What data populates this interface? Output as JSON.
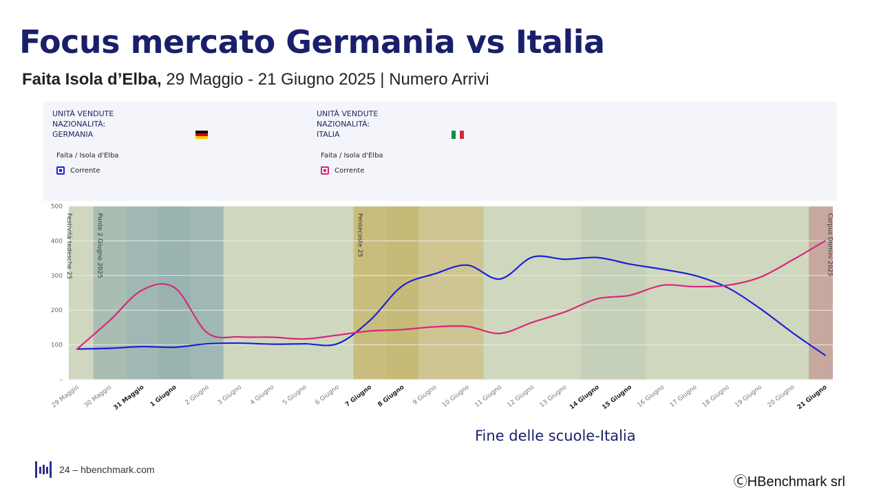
{
  "slide": {
    "title": "Focus mercato Germania vs Italia",
    "subtitle_bold": "Faita Isola d’Elba,",
    "subtitle_rest": " 29 Maggio - 21 Giugno 2025 | Numero Arrivi",
    "footnote": "Fine delle scuole-Italia",
    "footer": "24 – hbenchmark.com",
    "copyright": "ⒸHBenchmark srl"
  },
  "panel": {
    "germany": {
      "line1": "UNITÀ VENDUTE",
      "line2": "NAZIONALITÀ:",
      "line3": "GERMANIA",
      "group": "Faita / Isola d'Elba",
      "legend": "Corrente",
      "color": "#1a1fd6",
      "flag": "germany-flag"
    },
    "italy": {
      "line1": "UNITÀ VENDUTE",
      "line2": "NAZIONALITÀ:",
      "line3": "ITALIA",
      "group": "Faita / Isola d'Elba",
      "legend": "Corrente",
      "color": "#d9267a",
      "flag": "italy-flag"
    }
  },
  "chart_data": {
    "type": "line",
    "x": [
      "29 Maggio",
      "30 Maggio",
      "31 Maggio",
      "1 Giugno",
      "2 Giugno",
      "3 Giugno",
      "4 Giugno",
      "5 Giugno",
      "6 Giugno",
      "7 Giugno",
      "8 Giugno",
      "9 Giugno",
      "10 Giugno",
      "11 Giugno",
      "12 Giugno",
      "13 Giugno",
      "14 Giugno",
      "15 Giugno",
      "16 Giugno",
      "17 Giugno",
      "18 Giugno",
      "19 Giugno",
      "20 Giugno",
      "21 Giugno"
    ],
    "bold_ticks": [
      "31 Maggio",
      "1 Giugno",
      "7 Giugno",
      "8 Giugno",
      "14 Giugno",
      "15 Giugno",
      "21 Giugno"
    ],
    "ylim": [
      0,
      500
    ],
    "yticks": [
      "500",
      "400",
      "300",
      "200",
      "100",
      "–"
    ],
    "grid": true,
    "series": [
      {
        "name": "Germania",
        "color": "#1a1fd6",
        "values": [
          88,
          90,
          95,
          93,
          103,
          105,
          102,
          103,
          103,
          170,
          270,
          305,
          330,
          290,
          353,
          347,
          352,
          333,
          318,
          300,
          265,
          205,
          135,
          70
        ]
      },
      {
        "name": "Italia",
        "color": "#d9267a",
        "values": [
          88,
          170,
          258,
          265,
          135,
          123,
          122,
          117,
          128,
          140,
          144,
          152,
          153,
          133,
          165,
          195,
          233,
          243,
          272,
          268,
          272,
          295,
          345,
          400
        ]
      }
    ],
    "bands": [
      {
        "from": -0.5,
        "to": 23.5,
        "color": "#cfd8bf",
        "label": ""
      },
      {
        "from": 0.5,
        "to": 1.5,
        "color": "#a9bdb2",
        "label": ""
      },
      {
        "from": 1.5,
        "to": 2.5,
        "color": "#9fb8b3",
        "label": ""
      },
      {
        "from": 2.5,
        "to": 3.5,
        "color": "#99b3b0",
        "label": ""
      },
      {
        "from": 3.5,
        "to": 4.5,
        "color": "#9fb8b3",
        "label": ""
      },
      {
        "from": 8.5,
        "to": 9.5,
        "color": "#c9bd7d",
        "label": ""
      },
      {
        "from": 9.5,
        "to": 10.5,
        "color": "#c6ba78",
        "label": ""
      },
      {
        "from": 10.5,
        "to": 12.5,
        "color": "#cec592",
        "label": ""
      },
      {
        "from": 15.5,
        "to": 17.5,
        "color": "#c5d0b8",
        "label": ""
      },
      {
        "from": 22.5,
        "to": 23.5,
        "color": "#c7a89e",
        "label": ""
      }
    ],
    "annotations": [
      {
        "at": -0.3,
        "text": "Festività tedesche 25"
      },
      {
        "at": 0.65,
        "text": "Ponte 2 Giugno 2025"
      },
      {
        "at": 8.65,
        "text": "Pentecoste 25"
      },
      {
        "at": 23.1,
        "text": "Corpus Domini 2025"
      }
    ]
  }
}
